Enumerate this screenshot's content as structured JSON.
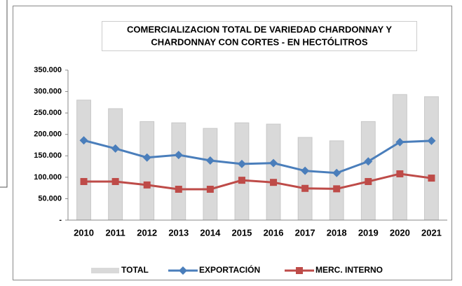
{
  "chart_data": {
    "type": "bar-line",
    "title": [
      "COMERCIALIZACION TOTAL DE VARIEDAD CHARDONNAY  Y",
      "CHARDONNAY CON CORTES - EN HECTÓLITROS"
    ],
    "categories": [
      "2010",
      "2011",
      "2012",
      "2013",
      "2014",
      "2015",
      "2016",
      "2017",
      "2018",
      "2019",
      "2020",
      "2021"
    ],
    "series": [
      {
        "name": "TOTAL",
        "kind": "bar",
        "color": "#d9d9d9",
        "values": [
          280000,
          260000,
          230000,
          227000,
          214000,
          227000,
          224000,
          193000,
          185000,
          230000,
          293000,
          288000
        ]
      },
      {
        "name": "EXPORTACIÓN",
        "kind": "line",
        "marker": "diamond",
        "color": "#4a7ebb",
        "values": [
          186000,
          167000,
          146000,
          152000,
          139000,
          131000,
          133000,
          115000,
          110000,
          137000,
          182000,
          185000
        ]
      },
      {
        "name": "MERC. INTERNO",
        "kind": "line",
        "marker": "square",
        "color": "#be4b48",
        "values": [
          90000,
          90000,
          82000,
          72000,
          72000,
          93000,
          88000,
          74000,
          73000,
          90000,
          108000,
          98000
        ]
      }
    ],
    "ylim": [
      0,
      350000
    ],
    "yticks": [
      {
        "value": 0,
        "label": "-"
      },
      {
        "value": 50000,
        "label": "50.000"
      },
      {
        "value": 100000,
        "label": "100.000"
      },
      {
        "value": 150000,
        "label": "150.000"
      },
      {
        "value": 200000,
        "label": "200.000"
      },
      {
        "value": 250000,
        "label": "250.000"
      },
      {
        "value": 300000,
        "label": "300.000"
      },
      {
        "value": 350000,
        "label": "350.000"
      }
    ],
    "legend": "bottom"
  }
}
